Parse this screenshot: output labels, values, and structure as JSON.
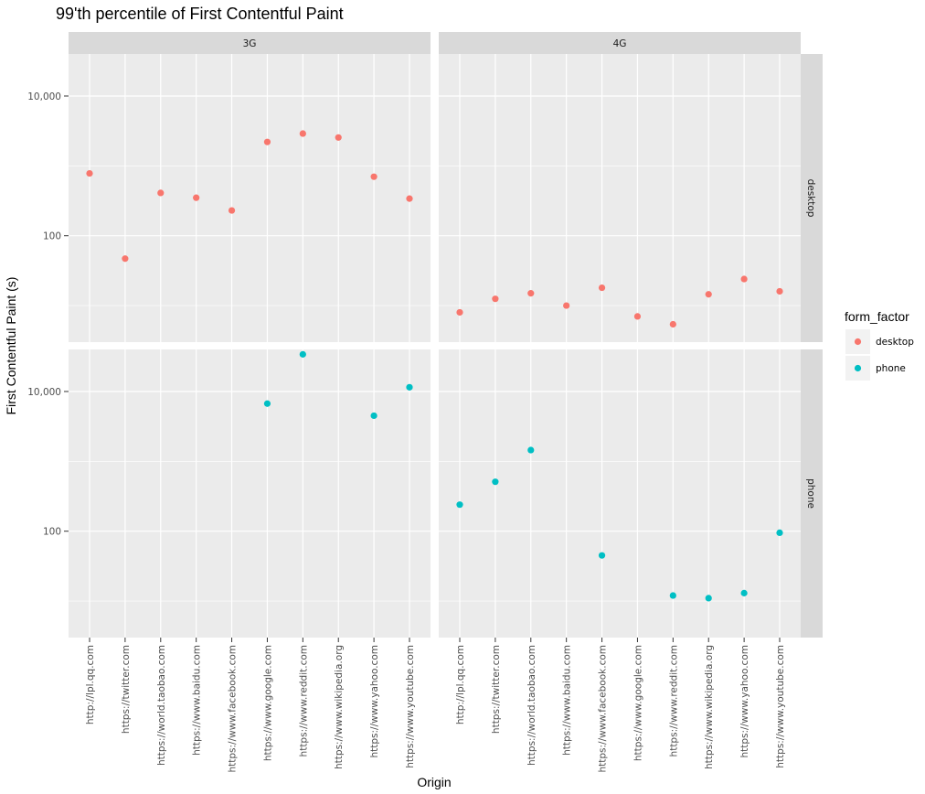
{
  "chart_data": {
    "type": "scatter",
    "title": "99'th percentile of First Contentful Paint",
    "xlabel": "Origin",
    "ylabel": "First Contentful Paint (s)",
    "y_scale": "log10",
    "ylim": [
      3,
      40000
    ],
    "y_ticks": [
      100,
      10000
    ],
    "y_tick_labels": [
      "100",
      "10,000"
    ],
    "categories": [
      "http://lpl.qq.com",
      "https://twitter.com",
      "https://world.taobao.com",
      "https://www.baidu.com",
      "https://www.facebook.com",
      "https://www.google.com",
      "https://www.reddit.com",
      "https://www.wikipedia.org",
      "https://www.yahoo.com",
      "https://www.youtube.com"
    ],
    "col_facets": [
      "3G",
      "4G"
    ],
    "row_facets": [
      "desktop",
      "phone"
    ],
    "legend": {
      "title": "form_factor",
      "placement": "right",
      "entries": [
        {
          "name": "desktop",
          "color": "#F8766D"
        },
        {
          "name": "phone",
          "color": "#00BFC4"
        }
      ]
    },
    "panels": [
      {
        "col": "3G",
        "row": "desktop",
        "color": "#F8766D",
        "values": [
          780,
          47,
          410,
          350,
          230,
          2200,
          2900,
          2550,
          700,
          340
        ]
      },
      {
        "col": "4G",
        "row": "desktop",
        "color": "#F8766D",
        "values": [
          8,
          12.5,
          15,
          10,
          18,
          7,
          5.4,
          14.5,
          24,
          16
        ]
      },
      {
        "col": "3G",
        "row": "phone",
        "color": "#00BFC4",
        "values": [
          null,
          null,
          null,
          null,
          null,
          6700,
          34000,
          null,
          4500,
          11500
        ]
      },
      {
        "col": "4G",
        "row": "phone",
        "color": "#00BFC4",
        "values": [
          240,
          510,
          1450,
          null,
          45,
          null,
          12,
          11,
          13,
          95
        ]
      }
    ]
  }
}
